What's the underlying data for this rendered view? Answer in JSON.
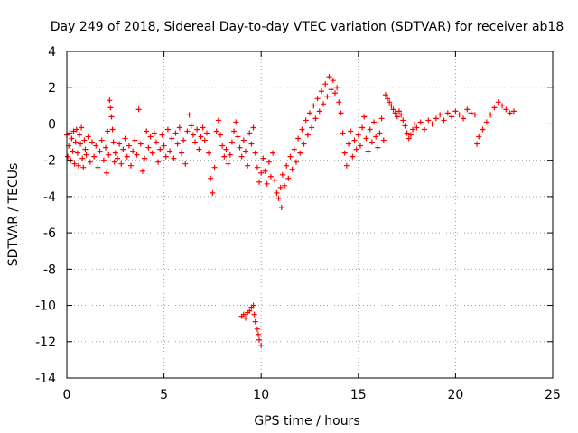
{
  "chart_data": {
    "type": "scatter",
    "title": "Day 249 of 2018, Sidereal Day-to-day VTEC variation (SDTVAR) for receiver ab18",
    "xlabel": "GPS time / hours",
    "ylabel": "SDTVAR / TECUs",
    "xlim": [
      0,
      25
    ],
    "ylim": [
      -14,
      4
    ],
    "x_ticks": [
      0,
      5,
      10,
      15,
      20,
      25
    ],
    "x_tick_labels": [
      "0",
      "5",
      "10",
      "15",
      "20",
      "25"
    ],
    "y_ticks": [
      -14,
      -12,
      -10,
      -8,
      -6,
      -4,
      -2,
      0,
      2,
      4
    ],
    "y_tick_labels": [
      "-14",
      "-12",
      "-10",
      "-8",
      "-6",
      "-4",
      "-2",
      "0",
      "2",
      "4"
    ],
    "grid": true,
    "marker": "+",
    "series": [
      {
        "name": "SDTVAR",
        "color": "#ff0000",
        "points": [
          [
            0.0,
            -0.6
          ],
          [
            0.05,
            -1.8
          ],
          [
            0.1,
            -1.2
          ],
          [
            0.15,
            -0.5
          ],
          [
            0.2,
            -2.0
          ],
          [
            0.25,
            -0.8
          ],
          [
            0.3,
            -1.5
          ],
          [
            0.35,
            -0.4
          ],
          [
            0.4,
            -2.2
          ],
          [
            0.45,
            -1.0
          ],
          [
            0.5,
            -0.3
          ],
          [
            0.55,
            -1.6
          ],
          [
            0.6,
            -2.3
          ],
          [
            0.65,
            -0.6
          ],
          [
            0.7,
            -1.1
          ],
          [
            0.75,
            -0.2
          ],
          [
            0.8,
            -1.9
          ],
          [
            0.85,
            -2.4
          ],
          [
            0.9,
            -0.9
          ],
          [
            0.95,
            -1.4
          ],
          [
            1.0,
            -1.7
          ],
          [
            1.1,
            -0.7
          ],
          [
            1.2,
            -2.1
          ],
          [
            1.3,
            -1.0
          ],
          [
            1.4,
            -1.8
          ],
          [
            1.5,
            -1.2
          ],
          [
            1.6,
            -2.4
          ],
          [
            1.7,
            -1.5
          ],
          [
            1.8,
            -0.9
          ],
          [
            1.9,
            -2.0
          ],
          [
            2.0,
            -1.3
          ],
          [
            2.05,
            -2.7
          ],
          [
            2.1,
            -0.4
          ],
          [
            2.15,
            -1.7
          ],
          [
            2.2,
            1.3
          ],
          [
            2.25,
            0.9
          ],
          [
            2.3,
            0.4
          ],
          [
            2.35,
            -0.3
          ],
          [
            2.4,
            -1.0
          ],
          [
            2.45,
            -2.1
          ],
          [
            2.5,
            -1.6
          ],
          [
            2.6,
            -1.9
          ],
          [
            2.7,
            -1.1
          ],
          [
            2.8,
            -2.2
          ],
          [
            2.9,
            -1.4
          ],
          [
            3.0,
            -0.8
          ],
          [
            3.1,
            -1.8
          ],
          [
            3.2,
            -1.2
          ],
          [
            3.3,
            -2.3
          ],
          [
            3.4,
            -1.5
          ],
          [
            3.5,
            -0.9
          ],
          [
            3.6,
            -1.7
          ],
          [
            3.7,
            0.8
          ],
          [
            3.8,
            -1.1
          ],
          [
            3.9,
            -2.6
          ],
          [
            4.0,
            -1.9
          ],
          [
            4.1,
            -0.4
          ],
          [
            4.2,
            -1.3
          ],
          [
            4.3,
            -0.7
          ],
          [
            4.4,
            -1.6
          ],
          [
            4.5,
            -0.5
          ],
          [
            4.6,
            -1.0
          ],
          [
            4.7,
            -2.1
          ],
          [
            4.8,
            -1.4
          ],
          [
            4.9,
            -0.6
          ],
          [
            5.0,
            -1.2
          ],
          [
            5.1,
            -1.8
          ],
          [
            5.2,
            -0.3
          ],
          [
            5.3,
            -1.5
          ],
          [
            5.4,
            -0.8
          ],
          [
            5.5,
            -1.9
          ],
          [
            5.6,
            -0.5
          ],
          [
            5.7,
            -1.1
          ],
          [
            5.8,
            -0.2
          ],
          [
            5.9,
            -1.6
          ],
          [
            6.0,
            -0.9
          ],
          [
            6.1,
            -2.2
          ],
          [
            6.2,
            -0.4
          ],
          [
            6.3,
            0.5
          ],
          [
            6.4,
            -0.1
          ],
          [
            6.5,
            -0.6
          ],
          [
            6.6,
            -1.0
          ],
          [
            6.7,
            -0.3
          ],
          [
            6.8,
            -1.4
          ],
          [
            6.9,
            -0.7
          ],
          [
            7.0,
            -0.2
          ],
          [
            7.1,
            -0.9
          ],
          [
            7.2,
            -0.5
          ],
          [
            7.3,
            -1.6
          ],
          [
            7.4,
            -3.0
          ],
          [
            7.5,
            -3.8
          ],
          [
            7.6,
            -2.4
          ],
          [
            7.7,
            -0.4
          ],
          [
            7.8,
            0.2
          ],
          [
            7.9,
            -0.6
          ],
          [
            8.0,
            -1.2
          ],
          [
            8.1,
            -1.8
          ],
          [
            8.2,
            -1.4
          ],
          [
            8.3,
            -2.2
          ],
          [
            8.4,
            -1.7
          ],
          [
            8.5,
            -1.0
          ],
          [
            8.6,
            -0.4
          ],
          [
            8.7,
            0.1
          ],
          [
            8.8,
            -0.7
          ],
          [
            8.9,
            -1.3
          ],
          [
            9.0,
            -1.8
          ],
          [
            9.1,
            -0.9
          ],
          [
            9.2,
            -1.5
          ],
          [
            9.3,
            -2.3
          ],
          [
            9.4,
            -0.5
          ],
          [
            9.5,
            -1.1
          ],
          [
            9.6,
            -0.2
          ],
          [
            9.7,
            -1.6
          ],
          [
            9.8,
            -2.4
          ],
          [
            9.9,
            -3.2
          ],
          [
            10.0,
            -2.7
          ],
          [
            10.1,
            -1.9
          ],
          [
            10.2,
            -2.6
          ],
          [
            10.3,
            -3.3
          ],
          [
            10.4,
            -2.1
          ],
          [
            10.5,
            -2.9
          ],
          [
            10.6,
            -1.6
          ],
          [
            10.7,
            -3.1
          ],
          [
            10.8,
            -3.8
          ],
          [
            10.9,
            -4.1
          ],
          [
            11.0,
            -3.5
          ],
          [
            11.05,
            -4.6
          ],
          [
            11.1,
            -2.8
          ],
          [
            11.2,
            -3.4
          ],
          [
            11.3,
            -2.3
          ],
          [
            11.4,
            -3.0
          ],
          [
            11.5,
            -1.8
          ],
          [
            11.6,
            -2.5
          ],
          [
            11.7,
            -1.4
          ],
          [
            11.8,
            -2.1
          ],
          [
            11.9,
            -0.8
          ],
          [
            12.0,
            -1.6
          ],
          [
            12.1,
            -0.3
          ],
          [
            12.2,
            -1.1
          ],
          [
            12.3,
            0.2
          ],
          [
            12.4,
            -0.6
          ],
          [
            12.5,
            0.6
          ],
          [
            12.6,
            -0.2
          ],
          [
            12.7,
            1.0
          ],
          [
            12.8,
            0.3
          ],
          [
            12.9,
            1.4
          ],
          [
            13.0,
            0.7
          ],
          [
            13.1,
            1.8
          ],
          [
            13.2,
            1.1
          ],
          [
            13.3,
            2.2
          ],
          [
            13.4,
            1.5
          ],
          [
            13.5,
            2.6
          ],
          [
            13.6,
            1.9
          ],
          [
            13.7,
            2.4
          ],
          [
            13.8,
            1.7
          ],
          [
            13.9,
            2.0
          ],
          [
            14.0,
            1.2
          ],
          [
            14.1,
            0.6
          ],
          [
            14.2,
            -0.5
          ],
          [
            14.3,
            -1.6
          ],
          [
            14.4,
            -2.3
          ],
          [
            14.5,
            -1.1
          ],
          [
            14.6,
            -0.4
          ],
          [
            14.7,
            -1.8
          ],
          [
            14.8,
            -0.9
          ],
          [
            14.9,
            -1.4
          ],
          [
            15.0,
            -0.6
          ],
          [
            15.1,
            -1.2
          ],
          [
            15.2,
            -0.2
          ],
          [
            15.3,
            0.4
          ],
          [
            15.4,
            -0.8
          ],
          [
            15.5,
            -1.5
          ],
          [
            15.6,
            -0.3
          ],
          [
            15.7,
            -1.0
          ],
          [
            15.8,
            0.1
          ],
          [
            15.9,
            -0.7
          ],
          [
            16.0,
            -1.3
          ],
          [
            16.1,
            -0.5
          ],
          [
            16.2,
            0.3
          ],
          [
            16.3,
            -0.9
          ],
          [
            16.4,
            1.6
          ],
          [
            16.5,
            1.4
          ],
          [
            16.6,
            1.2
          ],
          [
            16.7,
            1.0
          ],
          [
            16.8,
            0.8
          ],
          [
            16.9,
            0.6
          ],
          [
            17.0,
            0.4
          ],
          [
            17.1,
            0.7
          ],
          [
            17.2,
            0.5
          ],
          [
            17.3,
            0.2
          ],
          [
            17.4,
            -0.1
          ],
          [
            17.5,
            -0.5
          ],
          [
            17.6,
            -0.8
          ],
          [
            17.7,
            -0.6
          ],
          [
            17.8,
            -0.3
          ],
          [
            17.9,
            0.0
          ],
          [
            18.0,
            -0.2
          ],
          [
            18.2,
            0.1
          ],
          [
            18.4,
            -0.3
          ],
          [
            18.6,
            0.2
          ],
          [
            18.8,
            0.0
          ],
          [
            19.0,
            0.3
          ],
          [
            19.2,
            0.5
          ],
          [
            19.4,
            0.2
          ],
          [
            19.6,
            0.6
          ],
          [
            19.8,
            0.4
          ],
          [
            20.0,
            0.7
          ],
          [
            20.2,
            0.5
          ],
          [
            20.4,
            0.3
          ],
          [
            20.6,
            0.8
          ],
          [
            20.8,
            0.6
          ],
          [
            21.0,
            0.5
          ],
          [
            21.1,
            -1.1
          ],
          [
            21.2,
            -0.7
          ],
          [
            21.4,
            -0.3
          ],
          [
            21.6,
            0.1
          ],
          [
            21.8,
            0.5
          ],
          [
            22.0,
            0.9
          ],
          [
            22.2,
            1.2
          ],
          [
            22.4,
            1.0
          ],
          [
            22.6,
            0.8
          ],
          [
            22.8,
            0.6
          ],
          [
            23.0,
            0.7
          ],
          [
            9.0,
            -10.6
          ],
          [
            9.1,
            -10.5
          ],
          [
            9.2,
            -10.7
          ],
          [
            9.3,
            -10.4
          ],
          [
            9.4,
            -10.3
          ],
          [
            9.5,
            -10.1
          ],
          [
            9.6,
            -10.0
          ],
          [
            9.65,
            -10.5
          ],
          [
            9.7,
            -10.9
          ],
          [
            9.8,
            -11.3
          ],
          [
            9.85,
            -11.6
          ],
          [
            9.9,
            -11.9
          ],
          [
            10.0,
            -12.2
          ]
        ]
      }
    ]
  }
}
